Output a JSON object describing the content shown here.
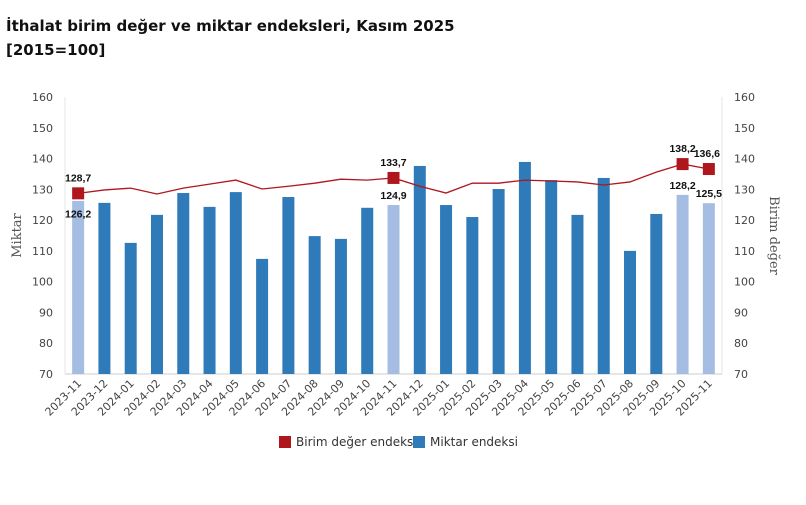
{
  "title": "İthalat birim değer ve miktar endeksleri, Kasım 2025",
  "subtitle": "[2015=100]",
  "chart_data": {
    "type": "bar+line",
    "categories": [
      "2023-11",
      "2023-12",
      "2024-01",
      "2024-02",
      "2024-03",
      "2024-04",
      "2024-05",
      "2024-06",
      "2024-07",
      "2024-08",
      "2024-09",
      "2024-10",
      "2024-11",
      "2024-12",
      "2025-01",
      "2025-02",
      "2025-03",
      "2025-04",
      "2025-05",
      "2025-06",
      "2025-07",
      "2025-08",
      "2025-09",
      "2025-10",
      "2025-11"
    ],
    "ylabel_left": "Miktar",
    "ylabel_right": "Birim değer",
    "ylim": [
      70,
      160
    ],
    "yticks": [
      70,
      80,
      90,
      100,
      110,
      120,
      130,
      140,
      150,
      160
    ],
    "grid": false,
    "legend_placement": "bottom",
    "series": [
      {
        "name": "Birim değer endeksi",
        "type": "line",
        "color": "#b0161e",
        "values": [
          128.7,
          129.8,
          130.4,
          128.5,
          130.4,
          131.7,
          133.0,
          130.1,
          131.0,
          132.0,
          133.3,
          133.0,
          133.7,
          131.0,
          128.8,
          132.0,
          132.0,
          133.0,
          132.7,
          132.4,
          131.4,
          132.4,
          135.6,
          138.2,
          136.6
        ],
        "labels": {
          "0": "128,7",
          "12": "133,7",
          "23": "138,2",
          "24": "136,6"
        }
      },
      {
        "name": "Miktar endeksi",
        "type": "bar",
        "color": "#2f7ab8",
        "highlight_color": "#a5bde3",
        "values": [
          126.2,
          125.6,
          112.6,
          121.7,
          128.8,
          124.3,
          129.1,
          107.4,
          127.5,
          114.8,
          113.9,
          124.0,
          124.9,
          137.6,
          124.9,
          121.0,
          130.1,
          138.9,
          133.0,
          121.7,
          133.7,
          110.0,
          122.0,
          128.2,
          125.5
        ],
        "labels": {
          "0": "126,2",
          "12": "124,9",
          "23": "128,2",
          "24": "125,5"
        }
      }
    ],
    "highlighted_indices": [
      0,
      12,
      23,
      24
    ]
  }
}
